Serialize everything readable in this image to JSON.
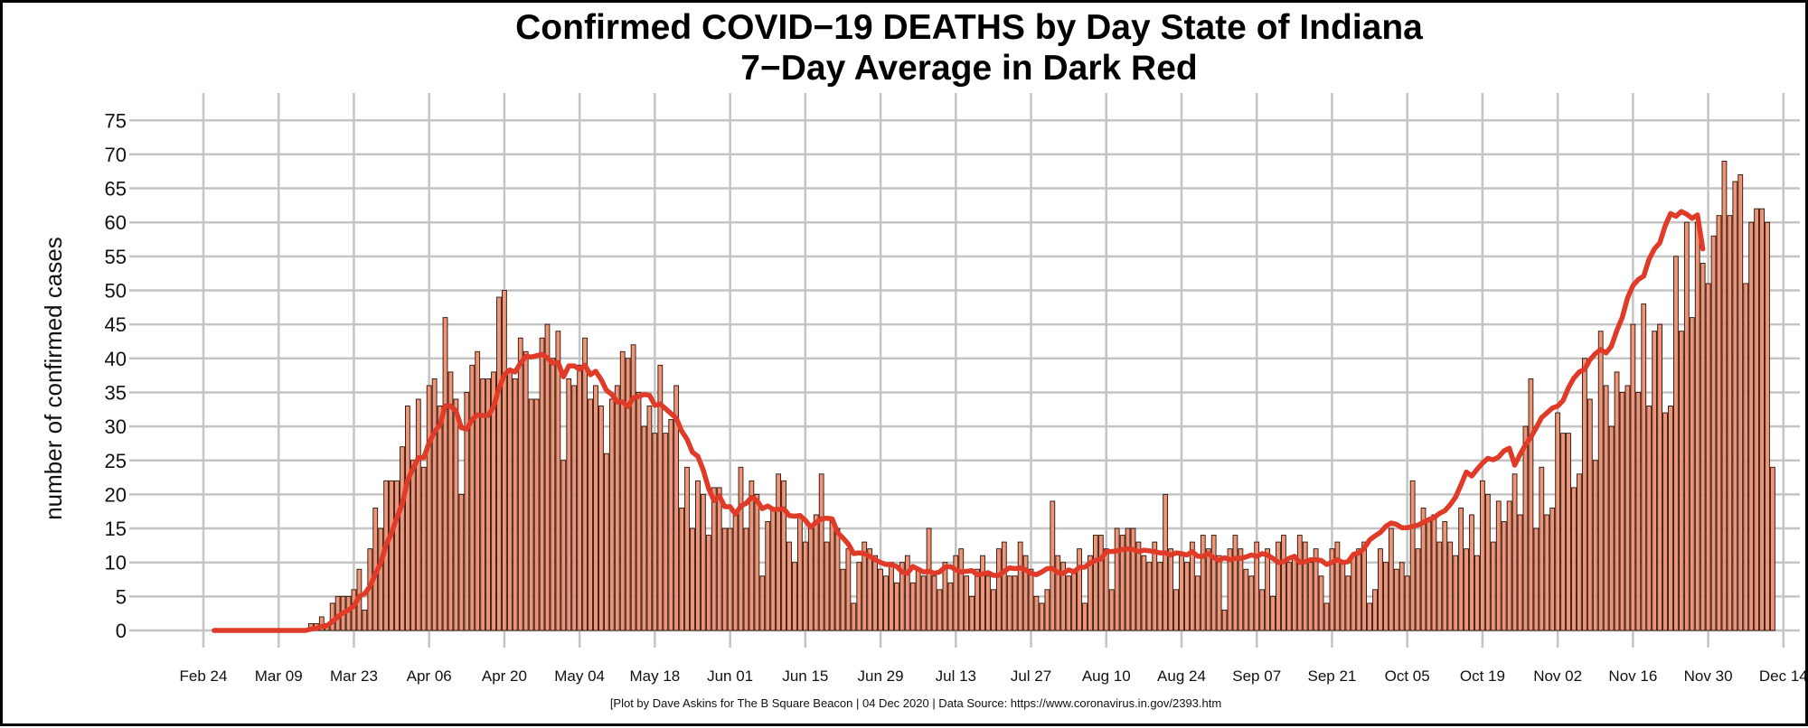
{
  "chart_data": {
    "type": "bar",
    "title": "Confirmed COVID−19 DEATHS by Day State of Indiana",
    "subtitle": "7−Day Average in Dark Red",
    "xlabel": "",
    "ylabel": "number of confirmed cases",
    "ylim": [
      0,
      75
    ],
    "yticks": [
      "0",
      "5",
      "10",
      "15",
      "20",
      "25",
      "30",
      "35",
      "40",
      "45",
      "50",
      "55",
      "60",
      "65",
      "70",
      "75"
    ],
    "xticks": [
      "Feb 24",
      "Mar 09",
      "Mar 23",
      "Apr 06",
      "Apr 20",
      "May 04",
      "May 18",
      "Jun 01",
      "Jun 15",
      "Jun 29",
      "Jul 13",
      "Jul 27",
      "Aug 10",
      "Aug 24",
      "Sep 07",
      "Sep 21",
      "Oct 05",
      "Oct 19",
      "Nov 02",
      "Nov 16",
      "Nov 30",
      "Dec 14"
    ],
    "x_start": "Feb 26",
    "x_end": "Dec 03",
    "grid": true,
    "series": [
      {
        "name": "Daily deaths",
        "style": "bars",
        "color": "#ee9478",
        "values": [
          0,
          0,
          0,
          0,
          0,
          0,
          0,
          0,
          0,
          0,
          0,
          0,
          0,
          0,
          0,
          0,
          0,
          0,
          1,
          1,
          2,
          1,
          4,
          5,
          5,
          5,
          6,
          9,
          3,
          12,
          18,
          15,
          22,
          22,
          22,
          27,
          33,
          25,
          34,
          24,
          36,
          37,
          33,
          46,
          38,
          34,
          20,
          35,
          39,
          41,
          37,
          37,
          38,
          49,
          50,
          38,
          37,
          43,
          41,
          34,
          34,
          43,
          45,
          40,
          44,
          25,
          37,
          36,
          39,
          43,
          34,
          36,
          33,
          26,
          34,
          36,
          41,
          40,
          42,
          35,
          30,
          33,
          29,
          39,
          29,
          31,
          36,
          18,
          24,
          15,
          22,
          20,
          14,
          21,
          21,
          15,
          15,
          17,
          24,
          15,
          22,
          20,
          8,
          16,
          18,
          23,
          22,
          13,
          10,
          17,
          13,
          15,
          17,
          23,
          13,
          16,
          15,
          9,
          12,
          4,
          10,
          13,
          12,
          11,
          9,
          8,
          10,
          7,
          10,
          11,
          7,
          9,
          8,
          15,
          8,
          6,
          10,
          7,
          11,
          12,
          8,
          5,
          9,
          11,
          8,
          6,
          12,
          13,
          8,
          8,
          13,
          11,
          9,
          5,
          4,
          6,
          19,
          11,
          10,
          8,
          9,
          12,
          4,
          11,
          14,
          14,
          12,
          6,
          15,
          14,
          15,
          15,
          13,
          11,
          10,
          13,
          10,
          20,
          12,
          6,
          11,
          10,
          13,
          8,
          14,
          12,
          14,
          11,
          3,
          12,
          14,
          12,
          9,
          8,
          13,
          6,
          12,
          5,
          13,
          14,
          10,
          11,
          14,
          13,
          10,
          12,
          8,
          4,
          12,
          13,
          10,
          8,
          11,
          12,
          13,
          4,
          6,
          12,
          10,
          15,
          9,
          10,
          8,
          22,
          12,
          18,
          16,
          17,
          13,
          16,
          13,
          11,
          18,
          12,
          17,
          11,
          22,
          20,
          13,
          19,
          16,
          19,
          23,
          17,
          30,
          37,
          15,
          24,
          17,
          18,
          32,
          29,
          29,
          21,
          23,
          40,
          34,
          25,
          44,
          36,
          30,
          38,
          35,
          36,
          45,
          35,
          48,
          33,
          44,
          45,
          32,
          33,
          55,
          44,
          60,
          46,
          60,
          54,
          51,
          58,
          61,
          69,
          61,
          66,
          67,
          51,
          60,
          62,
          62,
          60,
          24
        ]
      },
      {
        "name": "7-Day Average",
        "style": "line",
        "color": "#e03a28",
        "values": [
          0,
          0,
          0,
          0,
          0,
          0,
          0,
          0,
          0,
          0,
          0,
          0,
          0,
          0,
          0,
          0,
          0,
          0,
          0.2,
          0.3,
          0.6,
          0.7,
          1.3,
          2,
          2.6,
          3,
          3.6,
          5,
          5.4,
          6.5,
          8.3,
          9.9,
          12.6,
          14.3,
          16.6,
          18.6,
          22.1,
          23.8,
          25.4,
          25.4,
          27.6,
          29.2,
          30.2,
          33,
          33,
          32.3,
          29.8,
          29.6,
          31,
          31.7,
          31.6,
          31.6,
          32.9,
          35.6,
          37.6,
          38.3,
          38,
          39.3,
          40.3,
          40.2,
          40.4,
          40.6,
          40.1,
          39.3,
          39.4,
          37.3,
          38.9,
          38.9,
          38.4,
          39,
          37.6,
          38.1,
          36.9,
          35.3,
          34.7,
          33.6,
          33.6,
          32.9,
          34.2,
          34.4,
          34.7,
          34.6,
          33.1,
          33.3,
          32.6,
          31.9,
          31.2,
          29.3,
          28.1,
          26.2,
          25.6,
          23.6,
          20.9,
          19.1,
          19.8,
          18.2,
          18.2,
          17.1,
          18.3,
          18.7,
          19.6,
          19.1,
          17.9,
          18.3,
          17.8,
          17.8,
          17.9,
          16.9,
          16.8,
          16.9,
          16.2,
          15.2,
          15.9,
          16.4,
          16.5,
          16.4,
          14.4,
          13.6,
          12.7,
          11.3,
          11.4,
          11.3,
          10.9,
          10.4,
          10,
          9.7,
          9.7,
          9.4,
          8.6,
          8.4,
          9.4,
          9,
          8.6,
          8.7,
          8.4,
          8.6,
          9.3,
          9.4,
          8.9,
          8.6,
          8.7,
          8.8,
          8.2,
          8.3,
          8.5,
          8.1,
          8.1,
          8.7,
          9.2,
          9.1,
          9.2,
          8.9,
          8.4,
          8.2,
          8.6,
          9.1,
          9.1,
          8.5,
          8.4,
          8.9,
          8.6,
          9.3,
          9.3,
          9.9,
          10.3,
          10.5,
          11.6,
          11.6,
          11.7,
          11.9,
          12,
          11.9,
          11.6,
          11.8,
          11.7,
          11.6,
          11.4,
          11.4,
          11.1,
          11.4,
          11.3,
          11.1,
          11.6,
          10.9,
          10.9,
          11.3,
          10.7,
          10.3,
          10.7,
          10.4,
          10.6,
          10.6,
          10.8,
          11.1,
          10.9,
          11.3,
          11.1,
          10.6,
          10,
          10.1,
          10.6,
          10.9,
          10,
          10.1,
          10.4,
          10.4,
          10.3,
          9.7,
          10,
          10.4,
          10,
          10.1,
          11.2,
          11.4,
          12.1,
          13.3,
          13.9,
          14.4,
          15.3,
          15.8,
          15.6,
          15.1,
          15.1,
          15.3,
          15.5,
          15.9,
          16.3,
          16.6,
          17.2,
          17.6,
          18.5,
          19.6,
          21.4,
          23.3,
          22.7,
          23.7,
          24.6,
          25.3,
          25.1,
          25.5,
          26.4,
          26.8,
          24.3,
          25.9,
          27.3,
          28.4,
          29.8,
          31.3,
          32,
          32.7,
          33,
          33.8,
          35.7,
          37.1,
          38,
          38.4,
          39.8,
          40.7,
          41.3,
          40.8,
          41.8,
          44.1,
          46,
          48.9,
          50.7,
          51.6,
          52.1,
          54.6,
          56.1,
          57,
          59.5,
          61.3,
          60.9,
          61.6,
          61.2,
          60.6,
          61.1,
          56.1
        ]
      }
    ]
  },
  "footer": "[Plot by Dave Askins for The B Square Beacon | 04 Dec 2020 | Data Source: https://www.coronavirus.in.gov/2393.htm"
}
